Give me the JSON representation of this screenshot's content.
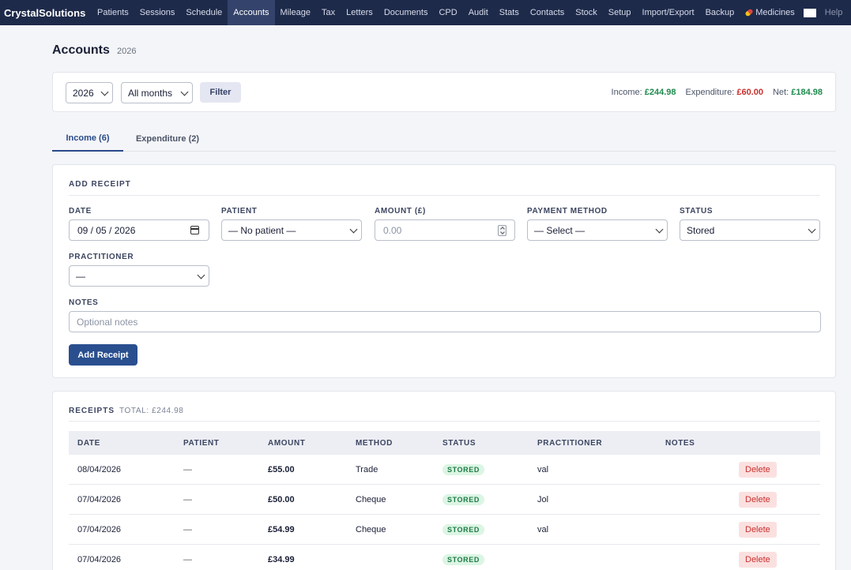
{
  "app": {
    "brand": "CrystalSolutions",
    "nav": [
      {
        "label": "Patients"
      },
      {
        "label": "Sessions"
      },
      {
        "label": "Schedule"
      },
      {
        "label": "Accounts",
        "active": true
      },
      {
        "label": "Mileage"
      },
      {
        "label": "Tax"
      },
      {
        "label": "Letters"
      },
      {
        "label": "Documents"
      },
      {
        "label": "CPD"
      },
      {
        "label": "Audit"
      },
      {
        "label": "Stats"
      },
      {
        "label": "Contacts"
      },
      {
        "label": "Stock"
      },
      {
        "label": "Setup"
      },
      {
        "label": "Import/Export"
      },
      {
        "label": "Backup"
      },
      {
        "label": "Medicines",
        "icon": "pill-icon"
      }
    ],
    "help_label": "Help"
  },
  "page": {
    "title": "Accounts",
    "year": "2026"
  },
  "filter": {
    "year_value": "2026",
    "month_value": "All months",
    "filter_label": "Filter",
    "summary": {
      "income_label": "Income:",
      "income_value": "£244.98",
      "expenditure_label": "Expenditure:",
      "expenditure_value": "£60.00",
      "net_label": "Net:",
      "net_value": "£184.98",
      "colors": {
        "positive": "#1e8a4c",
        "negative": "#c9302c"
      }
    }
  },
  "tabs": [
    {
      "label": "Income (6)",
      "active": true
    },
    {
      "label": "Expenditure (2)"
    }
  ],
  "add_receipt": {
    "title": "ADD RECEIPT",
    "date_label": "DATE",
    "date_value": "09 / 05 / 2026",
    "patient_label": "PATIENT",
    "patient_value": "— No patient —",
    "amount_label": "AMOUNT (£)",
    "amount_placeholder": "0.00",
    "method_label": "PAYMENT METHOD",
    "method_value": "— Select —",
    "status_label": "STATUS",
    "status_value": "Stored",
    "practitioner_label": "PRACTITIONER",
    "practitioner_value": "—",
    "notes_label": "NOTES",
    "notes_placeholder": "Optional notes",
    "submit_label": "Add Receipt"
  },
  "receipts": {
    "title": "RECEIPTS",
    "total": "TOTAL: £244.98",
    "columns": [
      "DATE",
      "PATIENT",
      "AMOUNT",
      "METHOD",
      "STATUS",
      "PRACTITIONER",
      "NOTES"
    ],
    "delete_label": "Delete",
    "rows": [
      {
        "date": "08/04/2026",
        "patient": "—",
        "amount": "£55.00",
        "method": "Trade",
        "status": "STORED",
        "practitioner": "val",
        "notes": ""
      },
      {
        "date": "07/04/2026",
        "patient": "—",
        "amount": "£50.00",
        "method": "Cheque",
        "status": "STORED",
        "practitioner": "Jol",
        "notes": ""
      },
      {
        "date": "07/04/2026",
        "patient": "—",
        "amount": "£54.99",
        "method": "Cheque",
        "status": "STORED",
        "practitioner": "val",
        "notes": ""
      },
      {
        "date": "07/04/2026",
        "patient": "—",
        "amount": "£34.99",
        "method": "",
        "status": "STORED",
        "practitioner": "",
        "notes": ""
      }
    ]
  }
}
